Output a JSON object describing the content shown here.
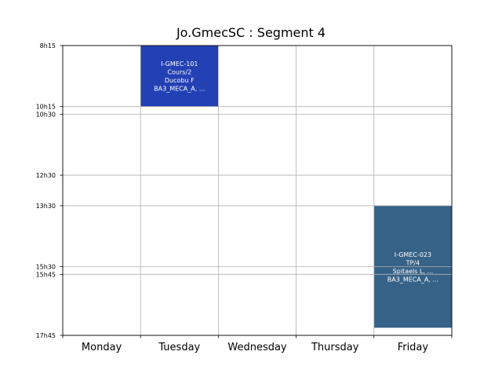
{
  "chart_data": {
    "type": "timetable",
    "title": "Jo.GmecSC : Segment 4",
    "days": [
      "Monday",
      "Tuesday",
      "Wednesday",
      "Thursday",
      "Friday"
    ],
    "time_ticks": [
      "8h15",
      "10h15",
      "10h30",
      "12h30",
      "13h30",
      "15h30",
      "15h45",
      "17h45"
    ],
    "time_range": [
      "8h15",
      "17h45"
    ],
    "grid": true,
    "events": [
      {
        "day": "Tuesday",
        "start": "8h15",
        "end": "10h15",
        "color": "#2341b5",
        "lines": [
          "I-GMEC-101",
          "Cours/2",
          "Ducobu F",
          "BA3_MECA_A, ..."
        ]
      },
      {
        "day": "Friday",
        "start": "13h30",
        "end": "17h30",
        "color": "#366287",
        "lines": [
          "I-GMEC-023",
          "TP/4",
          "Spitaels L, ...",
          "BA3_MECA_A, ..."
        ]
      }
    ]
  }
}
